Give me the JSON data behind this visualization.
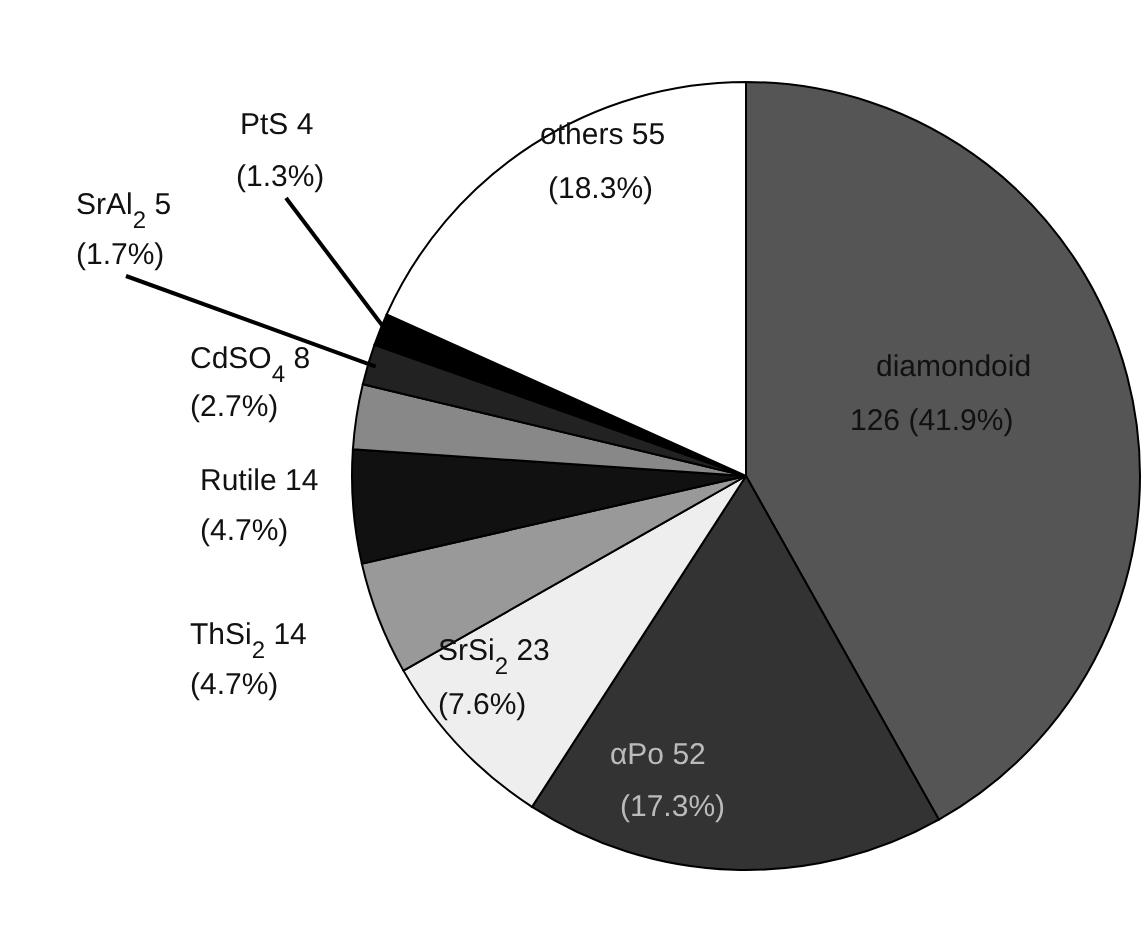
{
  "chart_data": {
    "type": "pie",
    "categories": [
      "diamondoid",
      "αPo",
      "SrSi$_{2}$",
      "ThSi$_{2}$",
      "Rutile",
      "CdSO$_{4}$",
      "SrAl$_{2}$",
      "PtS",
      "others"
    ],
    "values": [
      126,
      52,
      23,
      14,
      14,
      8,
      5,
      4,
      55
    ],
    "colors": [
      "#555555",
      "#333333",
      "#eeeeee",
      "#999999",
      "#111111",
      "#888888",
      "#222222",
      "#000000",
      "#ffffff"
    ],
    "value_labels": [
      "126 (41.9%)",
      "52 (17.3%)",
      "23 (7.6%)",
      "14 (4.7%)",
      "14 (4.7%)",
      "8 (2.7%)",
      "5 (1.7%)",
      "4 (1.3%)",
      "55 (18.3%)"
    ]
  }
}
